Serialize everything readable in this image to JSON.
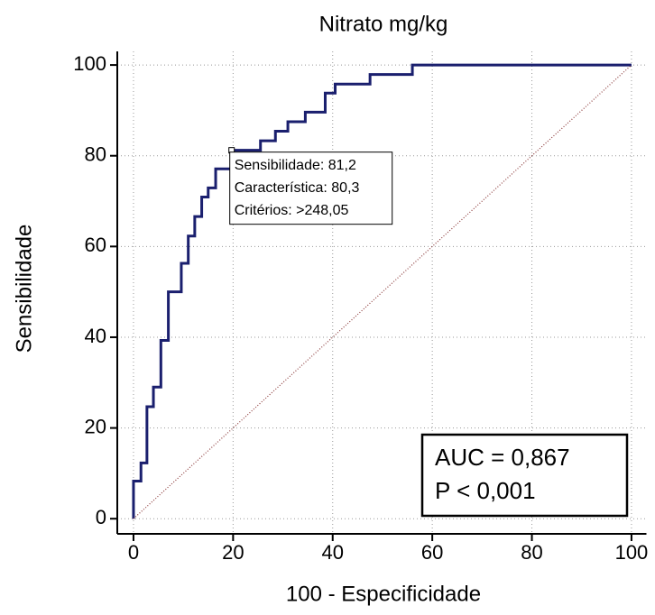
{
  "chart_data": {
    "type": "line",
    "title": "Nitrato mg/kg",
    "x_label": "100 - Especificidade",
    "y_label": "Sensibilidade",
    "xlim": [
      -3,
      103
    ],
    "ylim": [
      -3,
      103
    ],
    "xticks": [
      0,
      20,
      40,
      60,
      80,
      100
    ],
    "yticks": [
      0,
      20,
      40,
      60,
      80,
      100
    ],
    "grid": true,
    "series": [
      {
        "color": "#1a1f6e",
        "style": "solid",
        "x": [
          0,
          0,
          1.5,
          1.5,
          2.7,
          2.7,
          4,
          4,
          5.5,
          5.5,
          7,
          7,
          9.6,
          9.6,
          11,
          11,
          12.3,
          12.3,
          13.7,
          13.7,
          15,
          15,
          16.5,
          16.5,
          19.7,
          19.7,
          25.5,
          25.5,
          28.5,
          28.5,
          31,
          31,
          34.5,
          34.5,
          38.5,
          38.5,
          40.5,
          40.5,
          47.5,
          47.5,
          56,
          56,
          100
        ],
        "values": [
          0,
          8.3,
          8.3,
          12.3,
          12.3,
          24.7,
          24.7,
          29,
          29,
          39.3,
          39.3,
          50,
          50,
          56.3,
          56.3,
          62.3,
          62.3,
          66.6,
          66.6,
          70.9,
          70.9,
          72.9,
          72.9,
          77.1,
          77.1,
          81.2,
          81.2,
          83.3,
          83.3,
          85.4,
          85.4,
          87.5,
          87.5,
          89.6,
          89.6,
          93.8,
          93.8,
          95.8,
          95.8,
          97.9,
          97.9,
          100,
          100
        ]
      },
      {
        "color": "#8b3a3a",
        "style": "dotted",
        "x": [
          0,
          100
        ],
        "values": [
          0,
          100
        ]
      }
    ],
    "highlight_point": {
      "x": 19.7,
      "y": 81.2
    },
    "criterion_box": [
      "Sensibilidade: 81,2",
      "Característica: 80,3",
      "Critérios: >248,05"
    ],
    "stats_box": [
      "AUC = 0,867",
      "P < 0,001"
    ]
  }
}
